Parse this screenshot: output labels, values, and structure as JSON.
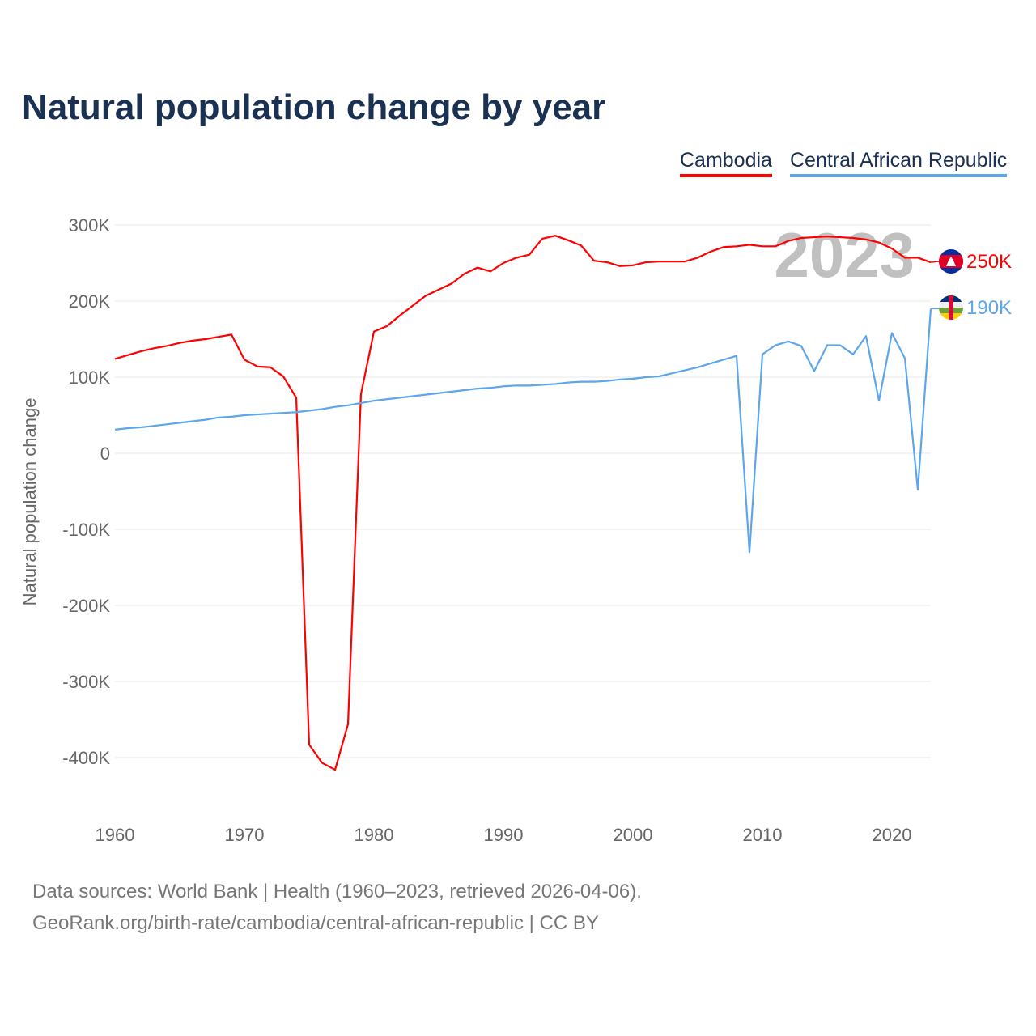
{
  "title": "Natural population change by year",
  "chart_data": {
    "type": "line",
    "title": "Natural population change by year",
    "xlabel": "",
    "ylabel": "Natural population change",
    "xlim": [
      1960,
      2023
    ],
    "ylim": [
      -450000,
      320000
    ],
    "x_ticks": [
      1960,
      1970,
      1980,
      1990,
      2000,
      2010,
      2020
    ],
    "x_tick_labels": [
      "1960",
      "1970",
      "1980",
      "1990",
      "2000",
      "2010",
      "2020"
    ],
    "y_ticks": [
      300000,
      200000,
      100000,
      0,
      -100000,
      -200000,
      -300000,
      -400000
    ],
    "y_tick_labels": [
      "300K",
      "200K",
      "100K",
      "0",
      "-100K",
      "-200K",
      "-300K",
      "-400K"
    ],
    "grid": true,
    "legend_position": "top-right",
    "year_label": "2023",
    "start_year": 1960,
    "series": [
      {
        "name": "Cambodia",
        "color": "#ff0000",
        "end_label": "250K",
        "values_k": [
          124,
          129,
          134,
          138,
          141,
          145,
          148,
          150,
          153,
          156,
          123,
          114,
          113,
          101,
          73,
          -383,
          -407,
          -416,
          -356,
          78,
          160,
          167,
          181,
          194,
          207,
          215,
          223,
          236,
          244,
          239,
          250,
          257,
          261,
          282,
          286,
          280,
          273,
          253,
          251,
          246,
          247,
          251,
          252,
          252,
          252,
          257,
          265,
          271,
          272,
          274,
          272,
          272,
          279,
          283,
          284,
          285,
          284,
          283,
          281,
          277,
          269,
          257,
          257,
          251
        ]
      },
      {
        "name": "Central African Republic",
        "color": "#5ea5eb",
        "end_label": "190K",
        "values_k": [
          31,
          33,
          34,
          36,
          38,
          40,
          42,
          44,
          47,
          48,
          50,
          51,
          52,
          53,
          54,
          56,
          58,
          61,
          63,
          66,
          69,
          71,
          73,
          75,
          77,
          79,
          81,
          83,
          85,
          86,
          88,
          89,
          89,
          90,
          91,
          93,
          94,
          94,
          95,
          97,
          98,
          100,
          101,
          105,
          109,
          113,
          118,
          123,
          128,
          -130,
          130,
          142,
          147,
          141,
          108,
          142,
          142,
          130,
          154,
          69,
          158,
          125,
          -48,
          190
        ]
      }
    ]
  },
  "footer": {
    "line1": "Data sources: World Bank | Health (1960–2023, retrieved 2026-04-06).",
    "line2": "GeoRank.org/birth-rate/cambodia/central-african-republic | CC BY"
  }
}
